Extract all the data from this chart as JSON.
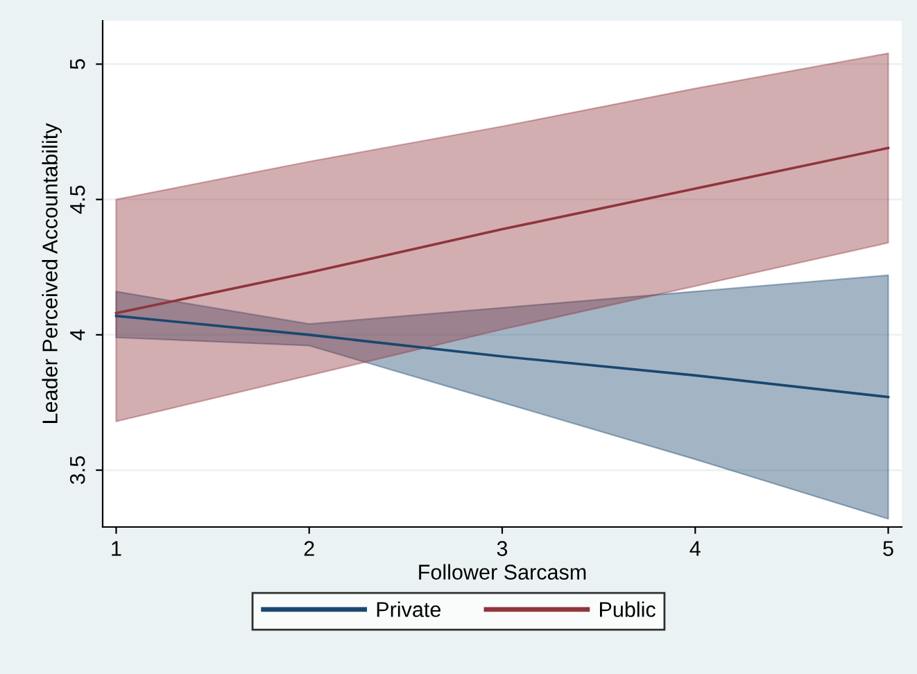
{
  "chart_data": {
    "type": "line",
    "xlabel": "Follower Sarcasm",
    "ylabel": "Leader Perceived Accountability",
    "x": [
      1,
      2,
      3,
      4,
      5
    ],
    "series": [
      {
        "name": "Private",
        "color": "#1a476f",
        "values": [
          4.07,
          4.0,
          3.92,
          3.85,
          3.77
        ],
        "lower": [
          3.99,
          3.96,
          3.75,
          3.54,
          3.32
        ],
        "upper": [
          4.16,
          4.04,
          4.1,
          4.16,
          4.22
        ]
      },
      {
        "name": "Public",
        "color": "#90353b",
        "values": [
          4.08,
          4.23,
          4.39,
          4.54,
          4.69
        ],
        "lower": [
          3.68,
          3.85,
          4.02,
          4.18,
          4.34
        ],
        "upper": [
          4.5,
          4.64,
          4.77,
          4.91,
          5.04
        ]
      }
    ],
    "xlim": [
      0.93,
      5.07
    ],
    "ylim": [
      3.29,
      5.16
    ],
    "xticks": [
      1,
      2,
      3,
      4,
      5
    ],
    "yticks": [
      3.5,
      4,
      4.5,
      5
    ],
    "grid": "y",
    "legend": "bottom",
    "marker": "none",
    "line_style": "solid"
  }
}
